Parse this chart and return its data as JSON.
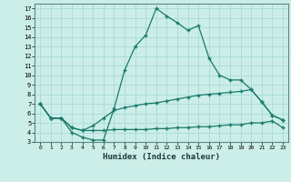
{
  "xlabel": "Humidex (Indice chaleur)",
  "bg_color": "#cceee8",
  "grid_color": "#aadddd",
  "line_color": "#1a7a6a",
  "xlim": [
    -0.5,
    23.5
  ],
  "ylim": [
    3,
    17.5
  ],
  "xticks": [
    0,
    1,
    2,
    3,
    4,
    5,
    6,
    7,
    8,
    9,
    10,
    11,
    12,
    13,
    14,
    15,
    16,
    17,
    18,
    19,
    20,
    21,
    22,
    23
  ],
  "yticks": [
    3,
    4,
    5,
    6,
    7,
    8,
    9,
    10,
    11,
    12,
    13,
    14,
    15,
    16,
    17
  ],
  "line1_x": [
    0,
    1,
    2,
    3,
    4,
    5,
    6,
    7,
    8,
    9,
    10,
    11,
    12,
    13,
    14,
    15,
    16,
    17,
    18,
    19,
    20,
    21,
    22,
    23
  ],
  "line1_y": [
    7.0,
    5.5,
    5.5,
    4.0,
    3.5,
    3.2,
    3.2,
    6.5,
    10.5,
    13.0,
    14.2,
    17.0,
    16.2,
    15.5,
    14.7,
    15.2,
    11.8,
    10.0,
    9.5,
    9.5,
    8.5,
    7.2,
    5.8,
    5.3
  ],
  "line2_x": [
    0,
    1,
    2,
    3,
    4,
    5,
    6,
    7,
    8,
    9,
    10,
    11,
    12,
    13,
    14,
    15,
    16,
    17,
    18,
    19,
    20,
    21,
    22,
    23
  ],
  "line2_y": [
    7.0,
    5.5,
    5.5,
    4.5,
    4.2,
    4.7,
    5.5,
    6.3,
    6.6,
    6.8,
    7.0,
    7.1,
    7.3,
    7.5,
    7.7,
    7.9,
    8.0,
    8.1,
    8.2,
    8.3,
    8.5,
    7.2,
    5.8,
    5.3
  ],
  "line3_x": [
    0,
    1,
    2,
    3,
    4,
    5,
    6,
    7,
    8,
    9,
    10,
    11,
    12,
    13,
    14,
    15,
    16,
    17,
    18,
    19,
    20,
    21,
    22,
    23
  ],
  "line3_y": [
    7.0,
    5.5,
    5.5,
    4.5,
    4.2,
    4.2,
    4.2,
    4.3,
    4.3,
    4.3,
    4.3,
    4.4,
    4.4,
    4.5,
    4.5,
    4.6,
    4.6,
    4.7,
    4.8,
    4.8,
    5.0,
    5.0,
    5.2,
    4.5
  ]
}
